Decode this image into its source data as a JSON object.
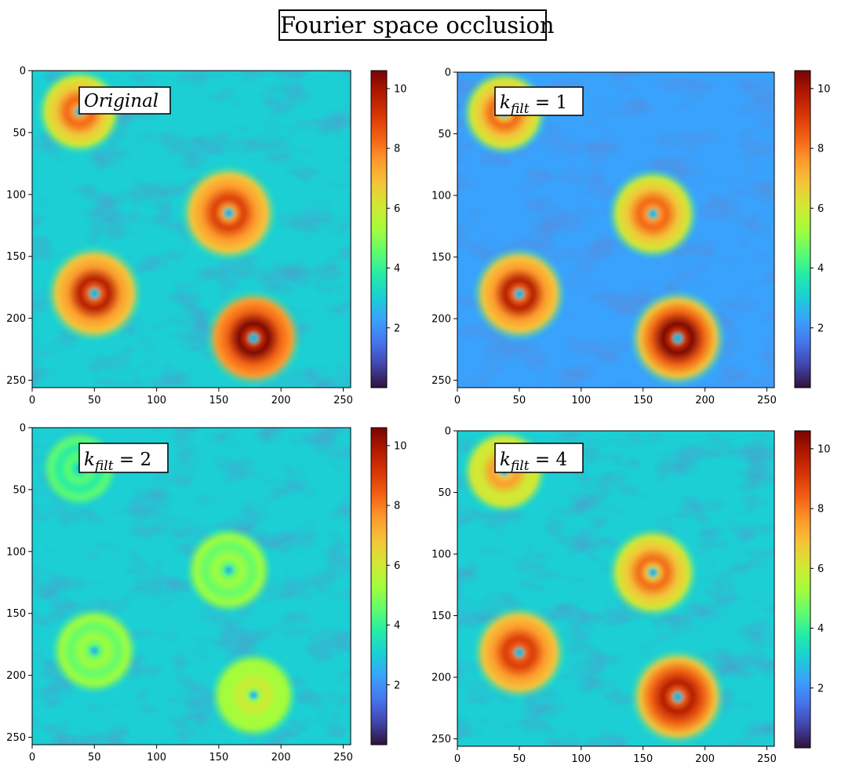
{
  "figure": {
    "title": "Fourier space occlusion"
  },
  "colormap": {
    "name": "turbo",
    "stops": [
      "#30123b",
      "#4145ab",
      "#4675ed",
      "#39a2fc",
      "#1bcfd4",
      "#24eca6",
      "#61fc6c",
      "#a4fc3b",
      "#d1e834",
      "#f3c63a",
      "#fe9b2d",
      "#f36315",
      "#d93806",
      "#b11901",
      "#7a0403"
    ]
  },
  "chart_data": [
    {
      "type": "heatmap",
      "label": "Original",
      "x_ticks": [
        0,
        50,
        100,
        150,
        200,
        250
      ],
      "y_ticks": [
        0,
        50,
        100,
        150,
        200,
        250
      ],
      "xlim": [
        0,
        256
      ],
      "ylim": [
        256,
        0
      ],
      "colorbar": {
        "ticks": [
          2,
          4,
          6,
          8,
          10
        ],
        "range": [
          0,
          10.6
        ]
      },
      "vortices": [
        {
          "x": 38,
          "y": 33,
          "peak": 8.6,
          "radius": 30
        },
        {
          "x": 158,
          "y": 115,
          "peak": 9.3,
          "radius": 34
        },
        {
          "x": 50,
          "y": 180,
          "peak": 9.8,
          "radius": 34
        },
        {
          "x": 178,
          "y": 216,
          "peak": 10.4,
          "radius": 34
        }
      ],
      "background_level": 2.8
    },
    {
      "type": "heatmap",
      "label": "k_filt = 1",
      "x_ticks": [
        0,
        50,
        100,
        150,
        200,
        250
      ],
      "y_ticks": [
        0,
        50,
        100,
        150,
        200,
        250
      ],
      "xlim": [
        0,
        256
      ],
      "ylim": [
        256,
        0
      ],
      "colorbar": {
        "ticks": [
          2,
          4,
          6,
          8,
          10
        ],
        "range": [
          0,
          10.6
        ]
      },
      "vortices": [
        {
          "x": 38,
          "y": 33,
          "peak": 8.4,
          "radius": 30
        },
        {
          "x": 158,
          "y": 115,
          "peak": 8.6,
          "radius": 32
        },
        {
          "x": 50,
          "y": 180,
          "peak": 9.6,
          "radius": 33
        },
        {
          "x": 178,
          "y": 216,
          "peak": 10.3,
          "radius": 34
        }
      ],
      "background_level": 2.6
    },
    {
      "type": "heatmap",
      "label": "k_filt = 2",
      "x_ticks": [
        0,
        50,
        100,
        150,
        200,
        250
      ],
      "y_ticks": [
        0,
        50,
        100,
        150,
        200,
        250
      ],
      "xlim": [
        0,
        256
      ],
      "ylim": [
        256,
        0
      ],
      "colorbar": {
        "ticks": [
          2,
          4,
          6,
          8,
          10
        ],
        "range": [
          0,
          10.6
        ]
      },
      "vortices": [
        {
          "x": 38,
          "y": 33,
          "peak": 4.8,
          "radius": 26
        },
        {
          "x": 158,
          "y": 115,
          "peak": 5.6,
          "radius": 30
        },
        {
          "x": 50,
          "y": 180,
          "peak": 5.4,
          "radius": 30
        },
        {
          "x": 178,
          "y": 216,
          "peak": 6.2,
          "radius": 30
        }
      ],
      "background_level": 3.4
    },
    {
      "type": "heatmap",
      "label": "k_filt = 4",
      "x_ticks": [
        0,
        50,
        100,
        150,
        200,
        250
      ],
      "y_ticks": [
        0,
        50,
        100,
        150,
        200,
        250
      ],
      "xlim": [
        0,
        256
      ],
      "ylim": [
        256,
        0
      ],
      "colorbar": {
        "ticks": [
          2,
          4,
          6,
          8,
          10
        ],
        "range": [
          0,
          10.6
        ]
      },
      "vortices": [
        {
          "x": 38,
          "y": 33,
          "peak": 7.6,
          "radius": 30
        },
        {
          "x": 158,
          "y": 115,
          "peak": 8.2,
          "radius": 32
        },
        {
          "x": 50,
          "y": 180,
          "peak": 9.4,
          "radius": 33
        },
        {
          "x": 178,
          "y": 216,
          "peak": 10.0,
          "radius": 34
        }
      ],
      "background_level": 2.7
    }
  ]
}
